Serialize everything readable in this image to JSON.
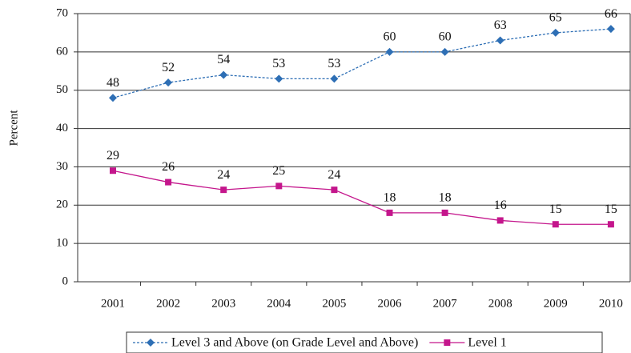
{
  "chart_data": {
    "type": "line",
    "y_label": "Percent",
    "categories": [
      "2001",
      "2002",
      "2003",
      "2004",
      "2005",
      "2006",
      "2007",
      "2008",
      "2009",
      "2010"
    ],
    "series": [
      {
        "name": "Level 3 and Above (on Grade Level and Above)",
        "color": "#2e6fb5",
        "dashed": true,
        "marker": "diamond",
        "values": [
          48,
          52,
          54,
          53,
          53,
          60,
          60,
          63,
          65,
          66
        ]
      },
      {
        "name": "Level 1",
        "color": "#c4168c",
        "dashed": false,
        "marker": "square",
        "values": [
          29,
          26,
          24,
          25,
          24,
          18,
          18,
          16,
          15,
          15
        ]
      }
    ],
    "ylim": [
      0,
      70
    ],
    "yticks": [
      0,
      10,
      20,
      30,
      40,
      50,
      60,
      70
    ],
    "grid": true,
    "legend": "bottom"
  }
}
